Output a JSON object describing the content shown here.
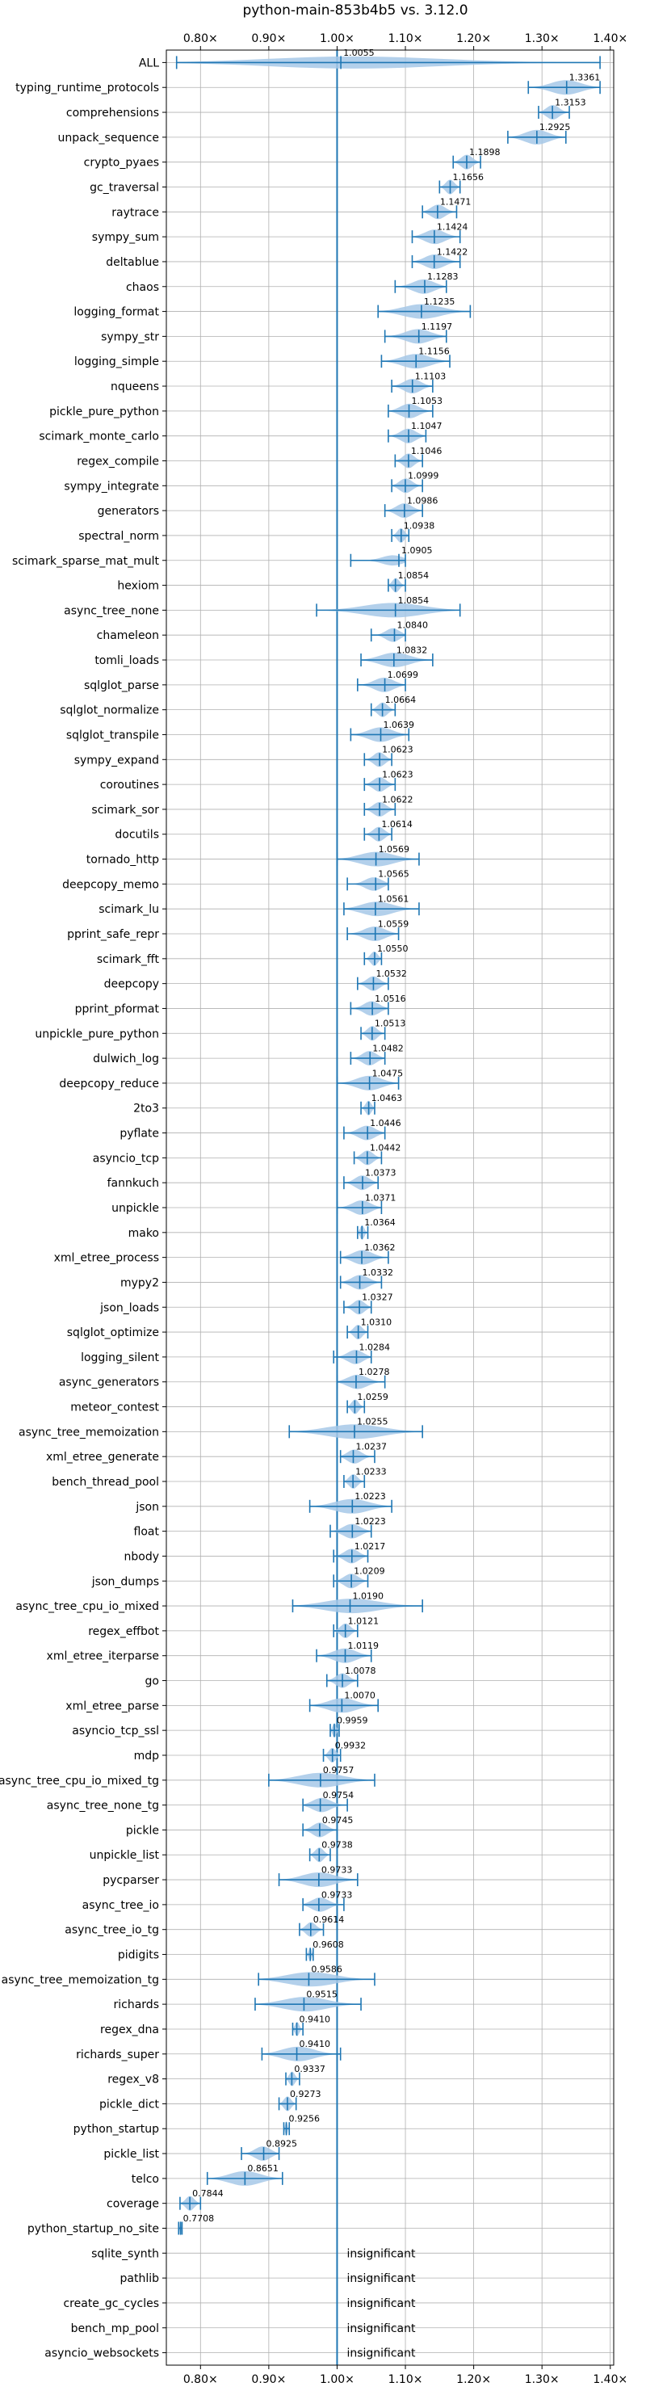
{
  "chart_data": {
    "type": "violin",
    "title": "python-main-853b4b5 vs. 3.12.0",
    "xlabel": "",
    "ylabel": "",
    "xlim": [
      0.75,
      1.405
    ],
    "x_ticks": [
      0.8,
      0.9,
      1.0,
      1.1,
      1.2,
      1.3,
      1.4
    ],
    "x_tick_labels": [
      "0.80×",
      "0.90×",
      "1.00×",
      "1.10×",
      "1.20×",
      "1.30×",
      "1.40×"
    ],
    "reference_line": 1.0,
    "grid": true,
    "colors": {
      "violin": "#a6c8e8",
      "line": "#1f77b4",
      "grid": "#b0b0b0"
    },
    "insignificant_label": "insignificant",
    "benchmarks": [
      {
        "name": "ALL",
        "value": 1.0055,
        "label": "1.0055",
        "min": 0.765,
        "max": 1.385,
        "width": 0.6
      },
      {
        "name": "typing_runtime_protocols",
        "value": 1.3361,
        "label": "1.3361",
        "min": 1.28,
        "max": 1.385,
        "width": 0.7
      },
      {
        "name": "comprehensions",
        "value": 1.3153,
        "label": "1.3153",
        "min": 1.295,
        "max": 1.34,
        "width": 0.7
      },
      {
        "name": "unpack_sequence",
        "value": 1.2925,
        "label": "1.2925",
        "min": 1.25,
        "max": 1.335,
        "width": 0.7
      },
      {
        "name": "crypto_pyaes",
        "value": 1.1898,
        "label": "1.1898",
        "min": 1.17,
        "max": 1.21,
        "width": 0.7
      },
      {
        "name": "gc_traversal",
        "value": 1.1656,
        "label": "1.1656",
        "min": 1.15,
        "max": 1.18,
        "width": 0.7
      },
      {
        "name": "raytrace",
        "value": 1.1471,
        "label": "1.1471",
        "min": 1.125,
        "max": 1.175,
        "width": 0.7
      },
      {
        "name": "sympy_sum",
        "value": 1.1424,
        "label": "1.1424",
        "min": 1.11,
        "max": 1.18,
        "width": 0.7
      },
      {
        "name": "deltablue",
        "value": 1.1422,
        "label": "1.1422",
        "min": 1.11,
        "max": 1.18,
        "width": 0.7
      },
      {
        "name": "chaos",
        "value": 1.1283,
        "label": "1.1283",
        "min": 1.085,
        "max": 1.16,
        "width": 0.7
      },
      {
        "name": "logging_format",
        "value": 1.1235,
        "label": "1.1235",
        "min": 1.06,
        "max": 1.195,
        "width": 0.7
      },
      {
        "name": "sympy_str",
        "value": 1.1197,
        "label": "1.1197",
        "min": 1.07,
        "max": 1.16,
        "width": 0.7
      },
      {
        "name": "logging_simple",
        "value": 1.1156,
        "label": "1.1156",
        "min": 1.065,
        "max": 1.165,
        "width": 0.7
      },
      {
        "name": "nqueens",
        "value": 1.1103,
        "label": "1.1103",
        "min": 1.08,
        "max": 1.14,
        "width": 0.7
      },
      {
        "name": "pickle_pure_python",
        "value": 1.1053,
        "label": "1.1053",
        "min": 1.075,
        "max": 1.14,
        "width": 0.7
      },
      {
        "name": "scimark_monte_carlo",
        "value": 1.1047,
        "label": "1.1047",
        "min": 1.075,
        "max": 1.13,
        "width": 0.7
      },
      {
        "name": "regex_compile",
        "value": 1.1046,
        "label": "1.1046",
        "min": 1.085,
        "max": 1.125,
        "width": 0.7
      },
      {
        "name": "sympy_integrate",
        "value": 1.0999,
        "label": "1.0999",
        "min": 1.08,
        "max": 1.125,
        "width": 0.7
      },
      {
        "name": "generators",
        "value": 1.0986,
        "label": "1.0986",
        "min": 1.07,
        "max": 1.125,
        "width": 0.7
      },
      {
        "name": "spectral_norm",
        "value": 1.0938,
        "label": "1.0938",
        "min": 1.08,
        "max": 1.105,
        "width": 0.7
      },
      {
        "name": "scimark_sparse_mat_mult",
        "value": 1.0905,
        "label": "1.0905",
        "min": 1.02,
        "max": 1.1,
        "width": 0.7
      },
      {
        "name": "hexiom",
        "value": 1.0854,
        "label": "1.0854",
        "min": 1.075,
        "max": 1.1,
        "width": 0.7
      },
      {
        "name": "async_tree_none",
        "value": 1.0854,
        "label": "1.0854",
        "min": 0.97,
        "max": 1.18,
        "width": 0.7
      },
      {
        "name": "chameleon",
        "value": 1.084,
        "label": "1.0840",
        "min": 1.05,
        "max": 1.1,
        "width": 0.7
      },
      {
        "name": "tomli_loads",
        "value": 1.0832,
        "label": "1.0832",
        "min": 1.035,
        "max": 1.14,
        "width": 0.7
      },
      {
        "name": "sqlglot_parse",
        "value": 1.0699,
        "label": "1.0699",
        "min": 1.03,
        "max": 1.1,
        "width": 0.7
      },
      {
        "name": "sqlglot_normalize",
        "value": 1.0664,
        "label": "1.0664",
        "min": 1.05,
        "max": 1.085,
        "width": 0.7
      },
      {
        "name": "sqlglot_transpile",
        "value": 1.0639,
        "label": "1.0639",
        "min": 1.02,
        "max": 1.105,
        "width": 0.7
      },
      {
        "name": "sympy_expand",
        "value": 1.0623,
        "label": "1.0623",
        "min": 1.04,
        "max": 1.08,
        "width": 0.7
      },
      {
        "name": "coroutines",
        "value": 1.0623,
        "label": "1.0623",
        "min": 1.04,
        "max": 1.085,
        "width": 0.7
      },
      {
        "name": "scimark_sor",
        "value": 1.0622,
        "label": "1.0622",
        "min": 1.04,
        "max": 1.085,
        "width": 0.7
      },
      {
        "name": "docutils",
        "value": 1.0614,
        "label": "1.0614",
        "min": 1.04,
        "max": 1.08,
        "width": 0.7
      },
      {
        "name": "tornado_http",
        "value": 1.0569,
        "label": "1.0569",
        "min": 1.0,
        "max": 1.12,
        "width": 0.7
      },
      {
        "name": "deepcopy_memo",
        "value": 1.0565,
        "label": "1.0565",
        "min": 1.015,
        "max": 1.075,
        "width": 0.7
      },
      {
        "name": "scimark_lu",
        "value": 1.0561,
        "label": "1.0561",
        "min": 1.01,
        "max": 1.12,
        "width": 0.7
      },
      {
        "name": "pprint_safe_repr",
        "value": 1.0559,
        "label": "1.0559",
        "min": 1.015,
        "max": 1.09,
        "width": 0.7
      },
      {
        "name": "scimark_fft",
        "value": 1.055,
        "label": "1.0550",
        "min": 1.04,
        "max": 1.065,
        "width": 0.7
      },
      {
        "name": "deepcopy",
        "value": 1.0532,
        "label": "1.0532",
        "min": 1.03,
        "max": 1.075,
        "width": 0.7
      },
      {
        "name": "pprint_pformat",
        "value": 1.0516,
        "label": "1.0516",
        "min": 1.02,
        "max": 1.075,
        "width": 0.7
      },
      {
        "name": "unpickle_pure_python",
        "value": 1.0513,
        "label": "1.0513",
        "min": 1.035,
        "max": 1.07,
        "width": 0.7
      },
      {
        "name": "dulwich_log",
        "value": 1.0482,
        "label": "1.0482",
        "min": 1.02,
        "max": 1.07,
        "width": 0.7
      },
      {
        "name": "deepcopy_reduce",
        "value": 1.0475,
        "label": "1.0475",
        "min": 1.0,
        "max": 1.09,
        "width": 0.7
      },
      {
        "name": "2to3",
        "value": 1.0463,
        "label": "1.0463",
        "min": 1.035,
        "max": 1.055,
        "width": 0.7
      },
      {
        "name": "pyflate",
        "value": 1.0446,
        "label": "1.0446",
        "min": 1.01,
        "max": 1.07,
        "width": 0.7
      },
      {
        "name": "asyncio_tcp",
        "value": 1.0442,
        "label": "1.0442",
        "min": 1.025,
        "max": 1.065,
        "width": 0.7
      },
      {
        "name": "fannkuch",
        "value": 1.0373,
        "label": "1.0373",
        "min": 1.01,
        "max": 1.06,
        "width": 0.7
      },
      {
        "name": "unpickle",
        "value": 1.0371,
        "label": "1.0371",
        "min": 1.0,
        "max": 1.065,
        "width": 0.7
      },
      {
        "name": "mako",
        "value": 1.0364,
        "label": "1.0364",
        "min": 1.03,
        "max": 1.045,
        "width": 0.7
      },
      {
        "name": "xml_etree_process",
        "value": 1.0362,
        "label": "1.0362",
        "min": 1.005,
        "max": 1.075,
        "width": 0.7
      },
      {
        "name": "mypy2",
        "value": 1.0332,
        "label": "1.0332",
        "min": 1.005,
        "max": 1.065,
        "width": 0.7
      },
      {
        "name": "json_loads",
        "value": 1.0327,
        "label": "1.0327",
        "min": 1.01,
        "max": 1.05,
        "width": 0.7
      },
      {
        "name": "sqlglot_optimize",
        "value": 1.031,
        "label": "1.0310",
        "min": 1.015,
        "max": 1.045,
        "width": 0.7
      },
      {
        "name": "logging_silent",
        "value": 1.0284,
        "label": "1.0284",
        "min": 0.995,
        "max": 1.05,
        "width": 0.7
      },
      {
        "name": "async_generators",
        "value": 1.0278,
        "label": "1.0278",
        "min": 1.0,
        "max": 1.07,
        "width": 0.7
      },
      {
        "name": "meteor_contest",
        "value": 1.0259,
        "label": "1.0259",
        "min": 1.015,
        "max": 1.04,
        "width": 0.7
      },
      {
        "name": "async_tree_memoization",
        "value": 1.0255,
        "label": "1.0255",
        "min": 0.93,
        "max": 1.125,
        "width": 0.7
      },
      {
        "name": "xml_etree_generate",
        "value": 1.0237,
        "label": "1.0237",
        "min": 1.005,
        "max": 1.055,
        "width": 0.7
      },
      {
        "name": "bench_thread_pool",
        "value": 1.0233,
        "label": "1.0233",
        "min": 1.01,
        "max": 1.04,
        "width": 0.7
      },
      {
        "name": "json",
        "value": 1.0223,
        "label": "1.0223",
        "min": 0.96,
        "max": 1.08,
        "width": 0.7
      },
      {
        "name": "float",
        "value": 1.0223,
        "label": "1.0223",
        "min": 0.99,
        "max": 1.05,
        "width": 0.7
      },
      {
        "name": "nbody",
        "value": 1.0217,
        "label": "1.0217",
        "min": 0.995,
        "max": 1.045,
        "width": 0.7
      },
      {
        "name": "json_dumps",
        "value": 1.0209,
        "label": "1.0209",
        "min": 0.995,
        "max": 1.045,
        "width": 0.7
      },
      {
        "name": "async_tree_cpu_io_mixed",
        "value": 1.019,
        "label": "1.0190",
        "min": 0.935,
        "max": 1.125,
        "width": 0.7
      },
      {
        "name": "regex_effbot",
        "value": 1.0121,
        "label": "1.0121",
        "min": 0.995,
        "max": 1.03,
        "width": 0.7
      },
      {
        "name": "xml_etree_iterparse",
        "value": 1.0119,
        "label": "1.0119",
        "min": 0.97,
        "max": 1.05,
        "width": 0.7
      },
      {
        "name": "go",
        "value": 1.0078,
        "label": "1.0078",
        "min": 0.985,
        "max": 1.03,
        "width": 0.7
      },
      {
        "name": "xml_etree_parse",
        "value": 1.007,
        "label": "1.0070",
        "min": 0.96,
        "max": 1.06,
        "width": 0.7
      },
      {
        "name": "asyncio_tcp_ssl",
        "value": 0.9959,
        "label": "0.9959",
        "min": 0.99,
        "max": 1.003,
        "width": 0.7
      },
      {
        "name": "mdp",
        "value": 0.9932,
        "label": "0.9932",
        "min": 0.98,
        "max": 1.005,
        "width": 0.7
      },
      {
        "name": "async_tree_cpu_io_mixed_tg",
        "value": 0.9757,
        "label": "0.9757",
        "min": 0.9,
        "max": 1.055,
        "width": 0.7
      },
      {
        "name": "async_tree_none_tg",
        "value": 0.9754,
        "label": "0.9754",
        "min": 0.95,
        "max": 1.015,
        "width": 0.7
      },
      {
        "name": "pickle",
        "value": 0.9745,
        "label": "0.9745",
        "min": 0.95,
        "max": 1.0,
        "width": 0.7
      },
      {
        "name": "unpickle_list",
        "value": 0.9738,
        "label": "0.9738",
        "min": 0.96,
        "max": 0.99,
        "width": 0.7
      },
      {
        "name": "pycparser",
        "value": 0.9733,
        "label": "0.9733",
        "min": 0.915,
        "max": 1.03,
        "width": 0.7
      },
      {
        "name": "async_tree_io",
        "value": 0.9733,
        "label": "0.9733",
        "min": 0.95,
        "max": 1.01,
        "width": 0.7
      },
      {
        "name": "async_tree_io_tg",
        "value": 0.9614,
        "label": "0.9614",
        "min": 0.945,
        "max": 0.98,
        "width": 0.7
      },
      {
        "name": "pidigits",
        "value": 0.9608,
        "label": "0.9608",
        "min": 0.955,
        "max": 0.965,
        "width": 0.7
      },
      {
        "name": "async_tree_memoization_tg",
        "value": 0.9586,
        "label": "0.9586",
        "min": 0.885,
        "max": 1.055,
        "width": 0.7
      },
      {
        "name": "richards",
        "value": 0.9515,
        "label": "0.9515",
        "min": 0.88,
        "max": 1.035,
        "width": 0.7
      },
      {
        "name": "regex_dna",
        "value": 0.941,
        "label": "0.9410",
        "min": 0.935,
        "max": 0.95,
        "width": 0.7
      },
      {
        "name": "richards_super",
        "value": 0.941,
        "label": "0.9410",
        "min": 0.89,
        "max": 1.005,
        "width": 0.7
      },
      {
        "name": "regex_v8",
        "value": 0.9337,
        "label": "0.9337",
        "min": 0.925,
        "max": 0.945,
        "width": 0.7
      },
      {
        "name": "pickle_dict",
        "value": 0.9273,
        "label": "0.9273",
        "min": 0.915,
        "max": 0.94,
        "width": 0.7
      },
      {
        "name": "python_startup",
        "value": 0.9256,
        "label": "0.9256",
        "min": 0.922,
        "max": 0.93,
        "width": 0.7
      },
      {
        "name": "pickle_list",
        "value": 0.8925,
        "label": "0.8925",
        "min": 0.86,
        "max": 0.915,
        "width": 0.7
      },
      {
        "name": "telco",
        "value": 0.8651,
        "label": "0.8651",
        "min": 0.81,
        "max": 0.92,
        "width": 0.7
      },
      {
        "name": "coverage",
        "value": 0.7844,
        "label": "0.7844",
        "min": 0.77,
        "max": 0.8,
        "width": 0.7
      },
      {
        "name": "python_startup_no_site",
        "value": 0.7708,
        "label": "0.7708",
        "min": 0.768,
        "max": 0.773,
        "width": 0.7
      },
      {
        "name": "sqlite_synth",
        "insignificant": true
      },
      {
        "name": "pathlib",
        "insignificant": true
      },
      {
        "name": "create_gc_cycles",
        "insignificant": true
      },
      {
        "name": "bench_mp_pool",
        "insignificant": true
      },
      {
        "name": "asyncio_websockets",
        "insignificant": true
      }
    ]
  }
}
